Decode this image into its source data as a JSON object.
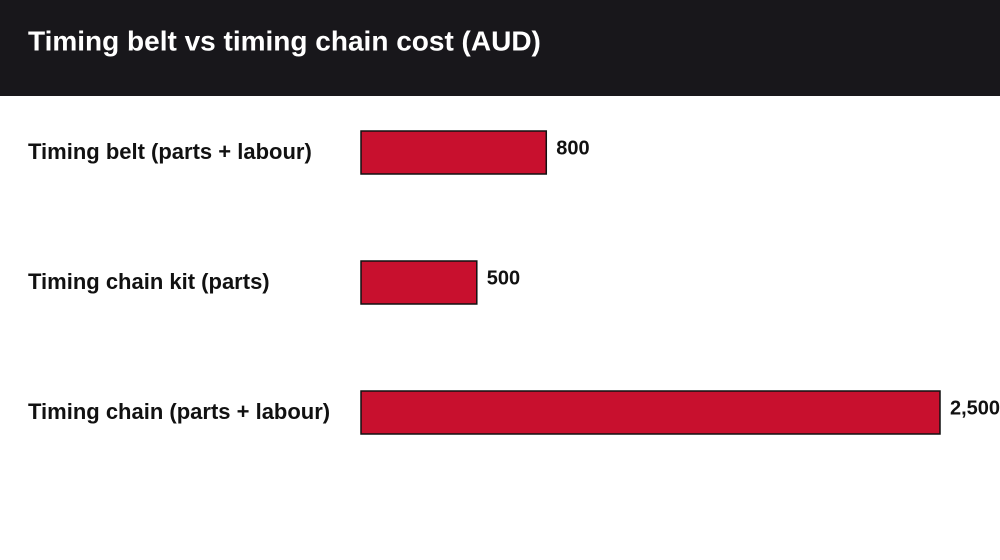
{
  "chart_data": {
    "type": "hbar",
    "title": "Timing belt vs timing chain cost (AUD)",
    "categories": [
      "Timing belt (parts + labour)",
      "Timing chain kit (parts)",
      "Timing chain (parts + labour)"
    ],
    "values": [
      800,
      500,
      2500
    ],
    "value_labels": [
      "800",
      "500",
      "2,500"
    ],
    "color": "#c8102e"
  }
}
